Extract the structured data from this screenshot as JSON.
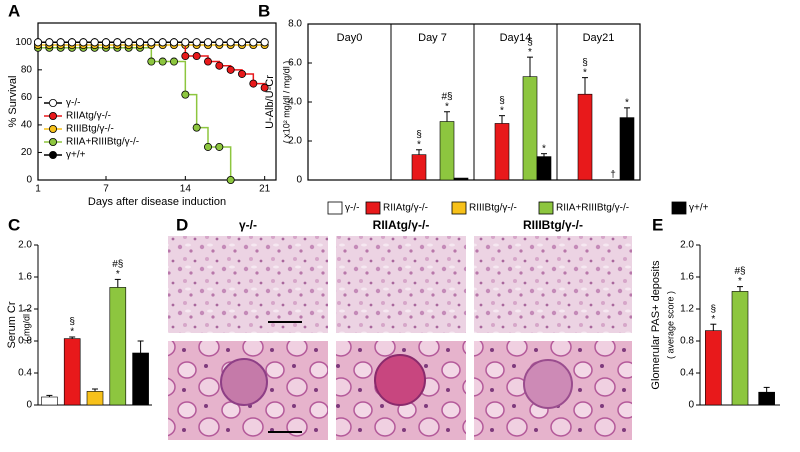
{
  "chart_data": [
    {
      "type": "line",
      "step": true,
      "label": "A",
      "ylabel": "% Survival",
      "xlabel": "Days after disease induction",
      "x": [
        1,
        2,
        3,
        4,
        5,
        6,
        7,
        8,
        9,
        10,
        11,
        12,
        13,
        14,
        15,
        16,
        17,
        18,
        19,
        20,
        21
      ],
      "xlim": [
        1,
        22
      ],
      "xticks": [
        1,
        7,
        14,
        21
      ],
      "ylim": [
        0,
        114
      ],
      "yticks": [
        0,
        20,
        40,
        60,
        80,
        100
      ],
      "series": [
        {
          "name": "γ-/-",
          "color": "#ffffff",
          "values": [
            100,
            100,
            100,
            100,
            100,
            100,
            100,
            100,
            100,
            100,
            100,
            100,
            100,
            100,
            100,
            100,
            100,
            100,
            100,
            100,
            100
          ]
        },
        {
          "name": "RIIAtg/γ-/-",
          "color": "#e8191b",
          "values": [
            100,
            100,
            100,
            100,
            100,
            100,
            100,
            100,
            100,
            100,
            100,
            100,
            100,
            90,
            90,
            86,
            83,
            80,
            77,
            70,
            67
          ]
        },
        {
          "name": "RIIIBtg/γ-/-",
          "color": "#f7c11a",
          "values": [
            98,
            98,
            98,
            98,
            98,
            98,
            98,
            98,
            98,
            98,
            98,
            98,
            98,
            98,
            98,
            98,
            98,
            98,
            98,
            98,
            98
          ]
        },
        {
          "name": "RIIA+RIIIBtg/γ-/-",
          "color": "#8dc63f",
          "values": [
            96,
            96,
            96,
            96,
            96,
            96,
            96,
            96,
            96,
            96,
            86,
            86,
            86,
            62,
            38,
            24,
            24,
            0,
            null,
            null,
            null
          ]
        },
        {
          "name": "γ+/+",
          "color": "#000000",
          "values": [
            100,
            100,
            100,
            100,
            100,
            100,
            100,
            100,
            100,
            100,
            100,
            100,
            100,
            100,
            100,
            100,
            100,
            100,
            100,
            100,
            100
          ]
        }
      ]
    },
    {
      "type": "bar",
      "label": "B",
      "ylabel": "U-Alb/U-Cr",
      "ylabel_unit": "( x10² mg/dl / mg/dl )",
      "categories": [
        "Day0",
        "Day 7",
        "Day14",
        "Day21"
      ],
      "ylim": [
        0,
        8
      ],
      "yticks": [
        0,
        {
          "value": 2,
          "label": "2.0"
        },
        {
          "value": 4,
          "label": "4.0"
        },
        {
          "value": 6,
          "label": "6.0"
        },
        {
          "value": 8,
          "label": "8.0"
        }
      ],
      "series": [
        {
          "name": "γ-/-",
          "color": "#ffffff",
          "values": [
            0,
            0,
            0,
            0
          ],
          "errors": [
            null,
            null,
            null,
            null
          ],
          "annotations": [
            null,
            null,
            null,
            null
          ]
        },
        {
          "name": "RIIAtg/γ-/-",
          "color": "#e8191b",
          "values": [
            0,
            1.3,
            2.9,
            4.4
          ],
          "errors": [
            null,
            0.25,
            0.4,
            0.85
          ],
          "annotations": [
            null,
            [
              "*",
              "§"
            ],
            [
              "*",
              "§"
            ],
            [
              "*",
              "§"
            ]
          ]
        },
        {
          "name": "RIIIBtg/γ-/-",
          "color": "#f7c11a",
          "values": [
            0,
            0,
            0,
            null
          ],
          "errors": [
            null,
            null,
            null,
            null
          ],
          "annotations": [
            null,
            null,
            null,
            null
          ]
        },
        {
          "name": "RIIA+RIIIBtg/γ-/-",
          "color": "#8dc63f",
          "values": [
            0,
            3.0,
            5.3,
            null
          ],
          "errors": [
            null,
            0.5,
            1.0,
            null
          ],
          "annotations": [
            null,
            [
              "*",
              "#§"
            ],
            [
              "*",
              "§"
            ],
            [
              "†"
            ]
          ]
        },
        {
          "name": "γ+/+",
          "color": "#000000",
          "values": [
            0,
            0.1,
            1.2,
            3.2
          ],
          "errors": [
            null,
            null,
            0.15,
            0.5
          ],
          "annotations": [
            null,
            null,
            [
              "*"
            ],
            [
              "*"
            ]
          ]
        }
      ]
    },
    {
      "type": "bar",
      "label": "C",
      "ylabel": "Serum Cr",
      "ylabel_unit": "( mg/dl )",
      "ylim": [
        0,
        2
      ],
      "yticks": [
        0,
        0.4,
        0.8,
        1.2,
        1.6,
        {
          "value": 2,
          "label": "2.0"
        }
      ],
      "values": [
        0.1,
        0.83,
        0.17,
        1.47,
        0.65
      ],
      "errors": [
        0.02,
        0.02,
        0.03,
        0.1,
        0.15
      ],
      "colors": [
        "#ffffff",
        "#e8191b",
        "#f7c11a",
        "#8dc63f",
        "#000000"
      ],
      "annotations": [
        null,
        [
          "*",
          "§"
        ],
        null,
        [
          "*",
          "#§"
        ],
        null
      ]
    },
    {
      "type": "bar",
      "label": "E",
      "ylabel": "Glomerular PAS+ deposits",
      "ylabel_unit": "( average score )",
      "ylim": [
        0,
        2
      ],
      "yticks": [
        0,
        0.4,
        0.8,
        1.2,
        1.6,
        {
          "value": 2,
          "label": "2.0"
        }
      ],
      "values": [
        0.93,
        1.42,
        0.16
      ],
      "errors": [
        0.08,
        0.06,
        0.06
      ],
      "colors": [
        "#e8191b",
        "#8dc63f",
        "#000000"
      ],
      "annotations": [
        [
          "*",
          "§"
        ],
        [
          "*",
          "#§"
        ],
        null
      ]
    }
  ],
  "histology": {
    "label": "D",
    "columns": [
      "γ-/-",
      "RIIAtg/γ-/-",
      "RIIIBtg/γ-/-"
    ]
  }
}
